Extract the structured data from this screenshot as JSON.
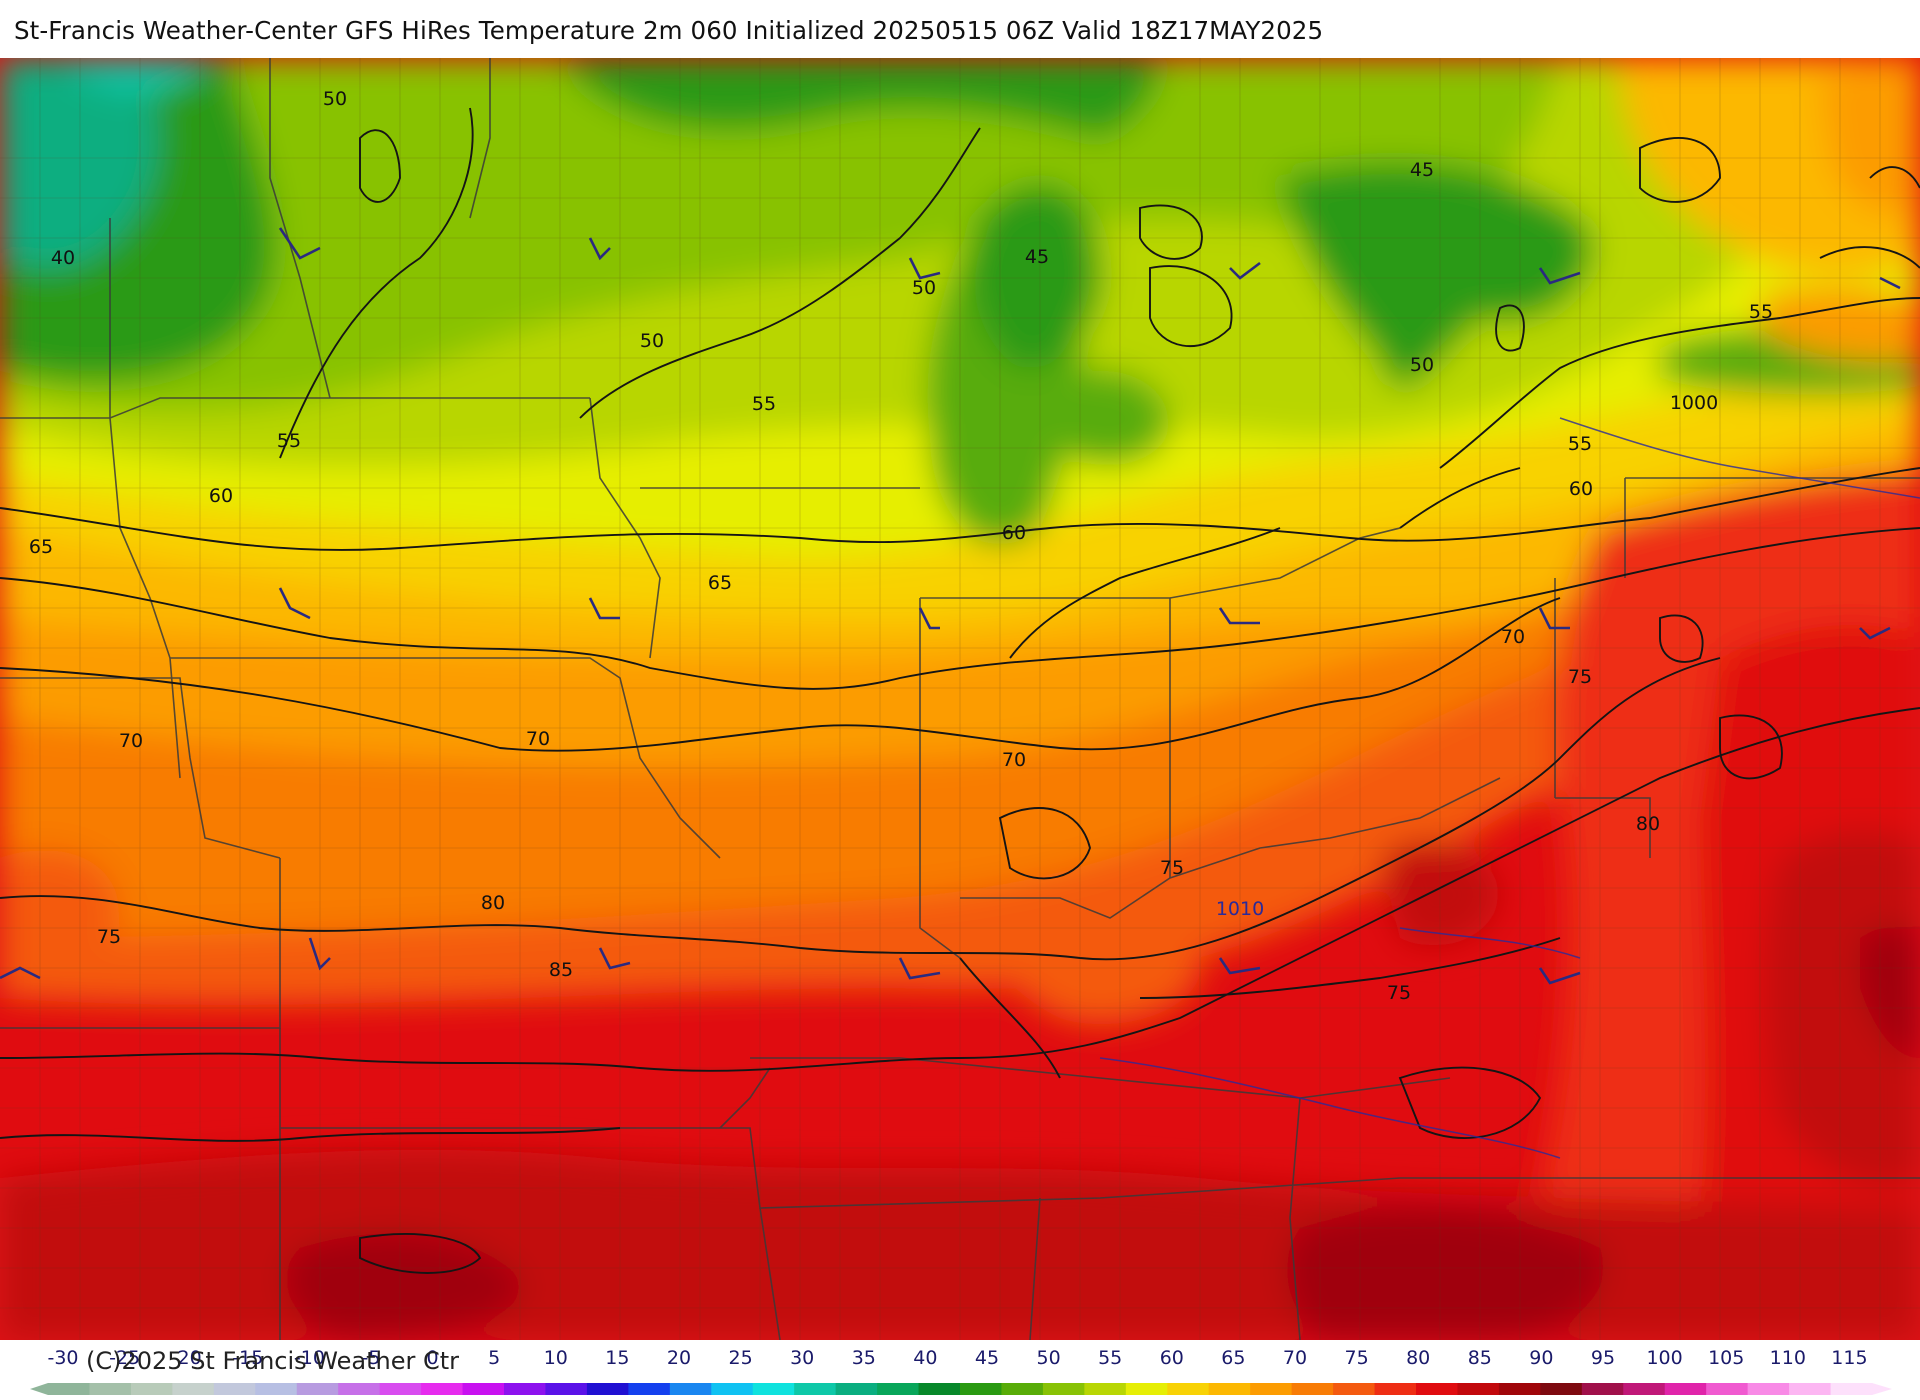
{
  "header": {
    "title": "St-Francis Weather-Center GFS HiRes Temperature 2m  060 Initialized 20250515 06Z Valid 18Z17MAY2025"
  },
  "map": {
    "temperature_labels": [
      {
        "text": "50"
      },
      {
        "text": "50"
      },
      {
        "text": "50"
      },
      {
        "text": "50"
      },
      {
        "text": "45"
      },
      {
        "text": "45"
      },
      {
        "text": "40"
      },
      {
        "text": "55"
      },
      {
        "text": "55"
      },
      {
        "text": "55"
      },
      {
        "text": "55"
      },
      {
        "text": "60"
      },
      {
        "text": "60"
      },
      {
        "text": "60"
      },
      {
        "text": "65"
      },
      {
        "text": "65"
      },
      {
        "text": "70"
      },
      {
        "text": "70"
      },
      {
        "text": "70"
      },
      {
        "text": "70"
      },
      {
        "text": "75"
      },
      {
        "text": "75"
      },
      {
        "text": "75"
      },
      {
        "text": "75"
      },
      {
        "text": "80"
      },
      {
        "text": "80"
      },
      {
        "text": "85"
      }
    ],
    "pressure_labels": [
      {
        "text": "1000"
      },
      {
        "text": "1010"
      }
    ]
  },
  "legend": {
    "units_step": 5,
    "ticks": [
      "-30",
      "-25",
      "-20",
      "-15",
      "-10",
      "-5",
      "0",
      "5",
      "10",
      "15",
      "20",
      "25",
      "30",
      "35",
      "40",
      "45",
      "50",
      "55",
      "60",
      "65",
      "70",
      "75",
      "80",
      "85",
      "90",
      "95",
      "100",
      "105",
      "110",
      "115"
    ],
    "colors": [
      "#8fb59a",
      "#a4c0a9",
      "#b8cbb9",
      "#c6d1cc",
      "#c2c8dc",
      "#b7bfe3",
      "#b79be0",
      "#c670e8",
      "#d84cef",
      "#e62bee",
      "#c811f0",
      "#8d12ee",
      "#5a12e8",
      "#2010d2",
      "#1440ee",
      "#1a86f0",
      "#10c2f2",
      "#10e2de",
      "#0ec8a8",
      "#0aae80",
      "#08a65a",
      "#07882a",
      "#2a9a12",
      "#58ac08",
      "#88c205",
      "#b8d604",
      "#e6ee06",
      "#f8d206",
      "#fcb802",
      "#fc9c02",
      "#f87c06",
      "#f45a10",
      "#ee2e14",
      "#e00c10",
      "#c2080c",
      "#a0060a",
      "#7e0a10",
      "#a0104a",
      "#c01878",
      "#e024aa",
      "#f05ad0",
      "#f88ae6",
      "#fcb6f2",
      "#fde0fb"
    ],
    "copyright": "(C)2025 St Francis Weather Ctr"
  }
}
